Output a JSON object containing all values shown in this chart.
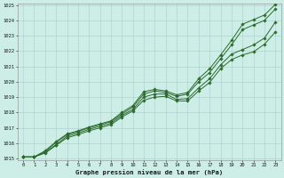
{
  "xlabel": "Graphe pression niveau de la mer (hPa)",
  "xlim": [
    0,
    23
  ],
  "ylim": [
    1015,
    1025
  ],
  "yticks": [
    1015,
    1016,
    1017,
    1018,
    1019,
    1020,
    1021,
    1022,
    1023,
    1024,
    1025
  ],
  "xticks": [
    0,
    1,
    2,
    3,
    4,
    5,
    6,
    7,
    8,
    9,
    10,
    11,
    12,
    13,
    14,
    15,
    16,
    17,
    18,
    19,
    20,
    21,
    22,
    23
  ],
  "background_color": "#cceee6",
  "grid_color": "#aacccc",
  "line_color": "#2d6a2d",
  "line1": [
    1015.1,
    1015.1,
    1015.5,
    1016.1,
    1016.6,
    1016.8,
    1017.05,
    1017.25,
    1017.45,
    1018.0,
    1018.45,
    1019.35,
    1019.5,
    1019.4,
    1019.15,
    1019.3,
    1020.2,
    1020.85,
    1021.75,
    1022.7,
    1023.75,
    1024.05,
    1024.35,
    1025.05
  ],
  "line2": [
    1015.1,
    1015.1,
    1015.45,
    1016.05,
    1016.55,
    1016.75,
    1017.0,
    1017.2,
    1017.4,
    1017.9,
    1018.35,
    1019.2,
    1019.4,
    1019.3,
    1019.05,
    1019.2,
    1020.0,
    1020.6,
    1021.5,
    1022.4,
    1023.4,
    1023.7,
    1024.0,
    1024.75
  ],
  "line3": [
    1015.1,
    1015.1,
    1015.4,
    1015.9,
    1016.45,
    1016.65,
    1016.9,
    1017.1,
    1017.3,
    1017.8,
    1018.2,
    1019.0,
    1019.2,
    1019.2,
    1018.85,
    1018.9,
    1019.6,
    1020.2,
    1021.1,
    1021.8,
    1022.1,
    1022.4,
    1022.85,
    1023.9
  ],
  "line4": [
    1015.1,
    1015.1,
    1015.35,
    1015.85,
    1016.35,
    1016.55,
    1016.8,
    1017.0,
    1017.2,
    1017.7,
    1018.1,
    1018.8,
    1019.0,
    1019.05,
    1018.75,
    1018.75,
    1019.4,
    1019.95,
    1020.85,
    1021.45,
    1021.75,
    1021.95,
    1022.45,
    1023.25
  ]
}
